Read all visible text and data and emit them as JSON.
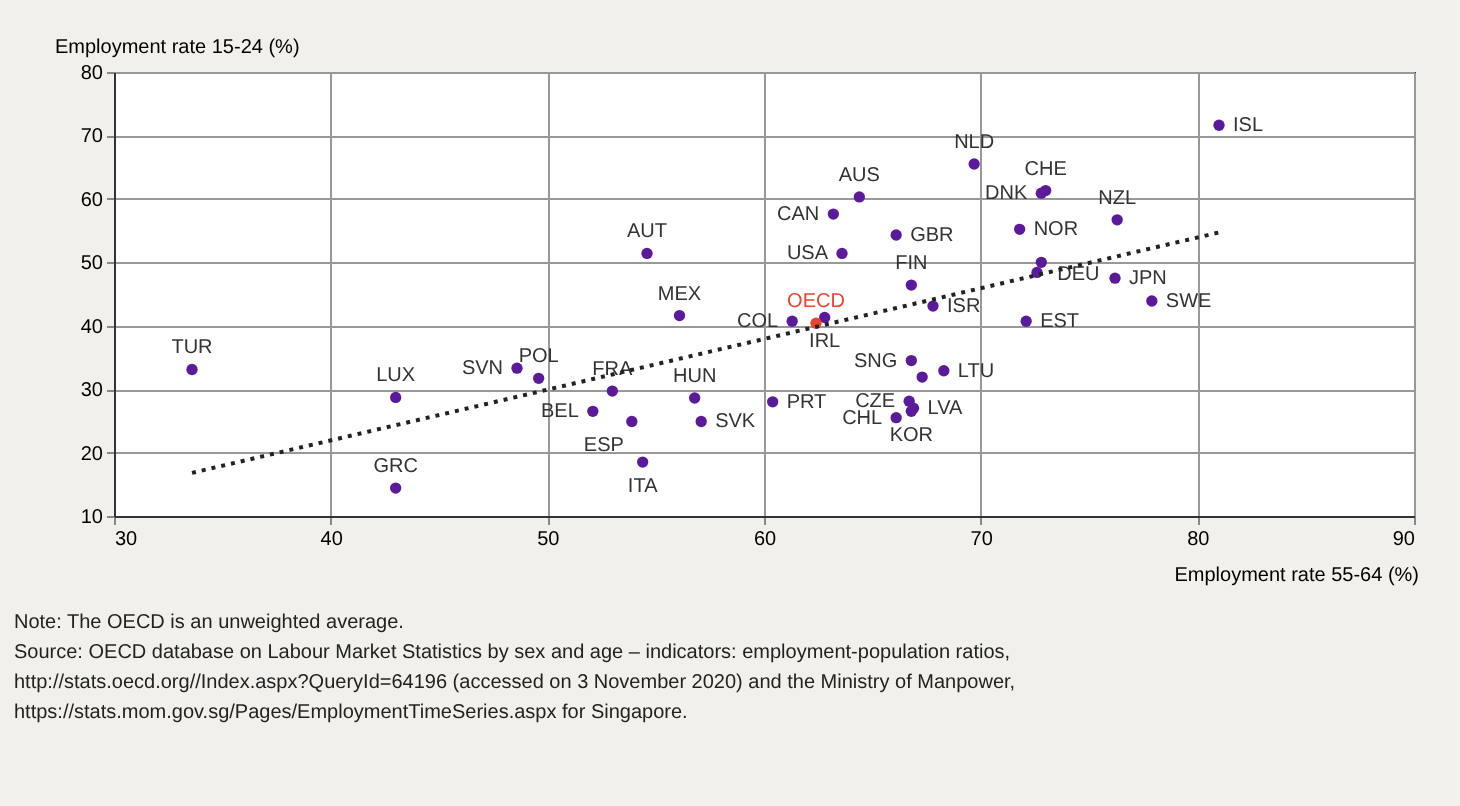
{
  "chart_data": {
    "type": "scatter",
    "xlabel": "Employment rate 55-64 (%)",
    "ylabel": "Employment rate 15-24 (%)",
    "xlim": [
      30,
      90
    ],
    "xticks": [
      30,
      40,
      50,
      60,
      70,
      80,
      90
    ],
    "ylim": [
      10,
      80
    ],
    "yticks": [
      10,
      20,
      30,
      40,
      50,
      60,
      70,
      80
    ],
    "grid": true,
    "series": [
      {
        "marker": "circle",
        "color": "#5b1a9a",
        "x": [
          33.6,
          43.0,
          43.0,
          48.6,
          49.6,
          52.1,
          53.0,
          53.9,
          54.4,
          54.6,
          56.1,
          56.8,
          57.1,
          61.3,
          62.8,
          60.4,
          64.4,
          63.2,
          63.6,
          66.1,
          66.8,
          67.8,
          66.8,
          67.3,
          68.3,
          66.7,
          66.9,
          66.1,
          66.8,
          69.7,
          73.0,
          72.8,
          71.8,
          76.3,
          72.8,
          72.6,
          76.2,
          77.9,
          72.1,
          81.0
        ],
        "values": [
          33.1,
          28.7,
          14.4,
          33.3,
          31.7,
          26.5,
          29.7,
          24.9,
          18.5,
          51.4,
          41.6,
          28.6,
          24.9,
          40.7,
          41.3,
          28.0,
          60.3,
          57.6,
          51.4,
          54.3,
          46.4,
          43.1,
          34.5,
          31.9,
          32.9,
          28.1,
          27.0,
          25.5,
          26.5,
          65.5,
          61.3,
          60.9,
          55.2,
          56.7,
          50.0,
          48.4,
          47.5,
          43.9,
          40.7,
          71.6
        ],
        "value_labels": [
          "TUR",
          "LUX",
          "GRC",
          "SVN",
          "POL",
          "BEL",
          "FRA",
          "ESP",
          "ITA",
          "AUT",
          "MEX",
          "HUN",
          "SVK",
          "COL",
          "IRL",
          "PRT",
          "AUS",
          "CAN",
          "USA",
          "GBR",
          "FIN",
          "ISR",
          "SNG",
          null,
          "LTU",
          "CZE",
          "LVA",
          "CHL",
          "KOR",
          "NLD",
          "CHE",
          "DNK",
          "NOR",
          "NZL",
          "DEU",
          null,
          "JPN",
          "SWE",
          "EST",
          "ISL"
        ]
      },
      {
        "marker": "circle",
        "color": "#e8452c",
        "x": [
          62.4
        ],
        "values": [
          40.4
        ],
        "value_labels": [
          "OECD"
        ]
      },
      {
        "type": "line",
        "color": "#222222",
        "line_style": "dotted",
        "x": [
          33.6,
          81.0
        ],
        "values": [
          16.8,
          54.7
        ]
      }
    ],
    "annotations": [
      "Note: The OECD is an unweighted average.",
      "Source: OECD database on Labour Market Statistics by sex and age – indicators: employment-population ratios, http://stats.oecd.org//Index.aspx?QueryId=64196 (accessed on 3 November 2020) and the Ministry of Manpower, https://stats.mom.gov.sg/Pages/EmploymentTimeSeries.aspx for Singapore."
    ]
  }
}
